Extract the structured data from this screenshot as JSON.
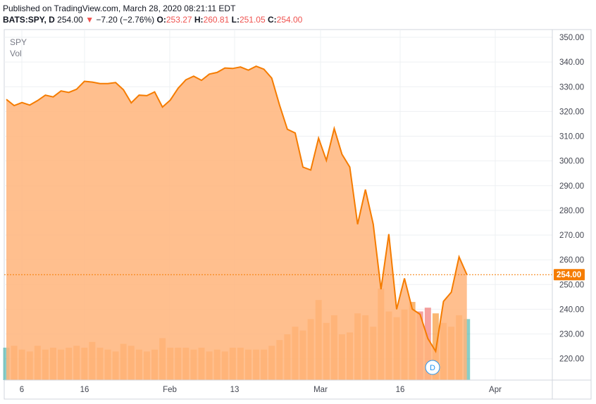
{
  "header": {
    "published": "Published on TradingView.com, March 28, 2020 08:21:11 EDT",
    "symbol": "BATS:SPY, D",
    "last": "254.00",
    "arrow": "▼",
    "change": "−7.20 (−2.76%)",
    "o_label": "O:",
    "o_value": "253.27",
    "h_label": "H:",
    "h_value": "260.81",
    "l_label": "L:",
    "l_value": "251.05",
    "c_label": "C:",
    "c_value": "254.00"
  },
  "legend": {
    "symbol": "SPY",
    "volume": "Vol"
  },
  "colors": {
    "line": "#f57c00",
    "area": "#ffb47a",
    "vol_up": "#26a69a",
    "vol_down": "#ef5350",
    "price_label_bg": "#f57c00",
    "grid": "#eef0f3"
  },
  "event_badge": "D",
  "chart_data": {
    "type": "area",
    "title": "SPY",
    "y_ticks": [
      "350.00",
      "340.00",
      "330.00",
      "320.00",
      "310.00",
      "300.00",
      "290.00",
      "280.00",
      "270.00",
      "260.00",
      "250.00",
      "240.00",
      "230.00",
      "220.00"
    ],
    "y_range": [
      213,
      355
    ],
    "x_ticks": [
      "6",
      "16",
      "Feb",
      "13",
      "Mar",
      "16",
      "Apr"
    ],
    "last_price_label": "254.00",
    "series": [
      {
        "name": "SPY",
        "close": [
          324.9,
          322.4,
          323.6,
          322.6,
          324.4,
          326.6,
          325.9,
          328.3,
          327.7,
          329.0,
          332.2,
          331.9,
          331.3,
          331.3,
          331.7,
          328.8,
          323.5,
          326.6,
          326.4,
          327.9,
          321.8,
          324.6,
          329.4,
          332.8,
          334.3,
          332.6,
          335.1,
          335.8,
          337.6,
          337.4,
          338.0,
          336.7,
          338.3,
          337.1,
          333.5,
          322.6,
          312.8,
          311.3,
          297.5,
          296.3,
          309.2,
          300.2,
          313.1,
          302.7,
          297.5,
          274.4,
          288.4,
          274.4,
          248.1,
          270.4,
          240.0,
          252.5,
          240.1,
          238.0,
          228.2,
          223.0,
          243.2,
          246.9,
          261.2,
          254.0
        ]
      },
      {
        "name": "Vol",
        "volume": [
          17,
          18,
          16,
          15,
          18,
          16,
          17,
          16,
          17,
          18,
          17,
          20,
          17,
          16,
          15,
          19,
          18,
          16,
          15,
          16,
          22,
          17,
          17,
          17,
          16,
          17,
          15,
          16,
          15,
          17,
          17,
          16,
          16,
          16,
          18,
          21,
          24,
          28,
          26,
          32,
          42,
          30,
          34,
          24,
          25,
          35,
          34,
          28,
          48,
          36,
          33,
          37,
          41,
          36,
          38,
          35,
          30,
          28,
          34,
          32
        ],
        "volume_colors": [
          "up",
          "down",
          "down",
          "down",
          "down",
          "down",
          "down",
          "down",
          "down",
          "down",
          "down",
          "down",
          "down",
          "down",
          "down",
          "down",
          "down",
          "down",
          "down",
          "down",
          "down",
          "down",
          "down",
          "down",
          "down",
          "down",
          "down",
          "down",
          "down",
          "down",
          "down",
          "down",
          "down",
          "down",
          "down",
          "down",
          "down",
          "down",
          "down",
          "down",
          "down",
          "down",
          "down",
          "down",
          "down",
          "down",
          "down",
          "down",
          "down",
          "down",
          "down",
          "down",
          "down",
          "red",
          "red",
          "down",
          "down",
          "down",
          "down",
          "up"
        ]
      }
    ]
  }
}
